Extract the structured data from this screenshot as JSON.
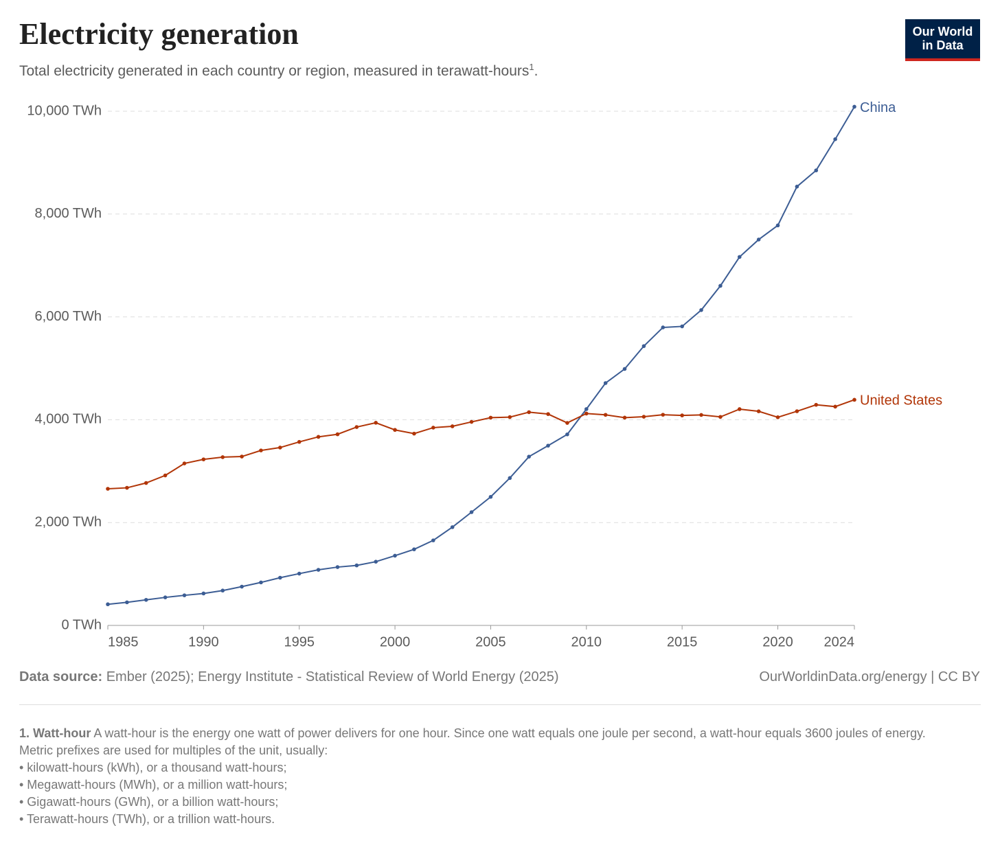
{
  "chart_data": {
    "type": "line",
    "title": "Electricity generation",
    "subtitle": "Total electricity generated in each country or region, measured in terawatt-hours",
    "subtitle_note": "1",
    "subtitle_end": ".",
    "x": [
      1985,
      1986,
      1987,
      1988,
      1989,
      1990,
      1991,
      1992,
      1993,
      1994,
      1995,
      1996,
      1997,
      1998,
      1999,
      2000,
      2001,
      2002,
      2003,
      2004,
      2005,
      2006,
      2007,
      2008,
      2009,
      2010,
      2011,
      2012,
      2013,
      2014,
      2015,
      2016,
      2017,
      2018,
      2019,
      2020,
      2021,
      2022,
      2023,
      2024
    ],
    "xlim": [
      1985,
      2024
    ],
    "xticks": [
      1985,
      1990,
      1995,
      2000,
      2005,
      2010,
      2015,
      2020,
      2024
    ],
    "ylim": [
      0,
      10000
    ],
    "yticks": [
      {
        "value": 0,
        "label": "0 TWh"
      },
      {
        "value": 2000,
        "label": "2,000 TWh"
      },
      {
        "value": 4000,
        "label": "4,000 TWh"
      },
      {
        "value": 6000,
        "label": "6,000 TWh"
      },
      {
        "value": 8000,
        "label": "8,000 TWh"
      },
      {
        "value": 10000,
        "label": "10,000 TWh"
      }
    ],
    "grid": true,
    "series": [
      {
        "name": "China",
        "color": "#3c5d94",
        "values": [
          411,
          449,
          497,
          545,
          585,
          621,
          678,
          754,
          836,
          928,
          1007,
          1081,
          1134,
          1167,
          1239,
          1356,
          1480,
          1654,
          1911,
          2203,
          2500,
          2866,
          3282,
          3496,
          3715,
          4207,
          4713,
          4988,
          5432,
          5795,
          5815,
          6133,
          6604,
          7166,
          7504,
          7779,
          8534,
          8849,
          9456,
          10087
        ]
      },
      {
        "name": "United States",
        "color": "#b13507",
        "values": [
          2657,
          2676,
          2770,
          2917,
          3150,
          3229,
          3272,
          3284,
          3403,
          3459,
          3569,
          3667,
          3717,
          3858,
          3941,
          3802,
          3730,
          3846,
          3872,
          3958,
          4040,
          4051,
          4147,
          4110,
          3938,
          4120,
          4095,
          4041,
          4058,
          4097,
          4084,
          4093,
          4055,
          4206,
          4164,
          4048,
          4165,
          4290,
          4255,
          4388
        ]
      }
    ]
  },
  "logo": [
    "Our World",
    "in Data"
  ],
  "source": {
    "label": "Data source:",
    "text": "Ember (2025); Energy Institute - Statistical Review of World Energy (2025)"
  },
  "credit": "OurWorldinData.org/energy | CC BY",
  "footnote": {
    "term": "1. Watt-hour",
    "definition": "A watt-hour is the energy one watt of power delivers for one hour. Since one watt equals one joule per second, a watt-hour equals 3600 joules of energy.",
    "lines": [
      "Metric prefixes are used for multiples of the unit, usually:",
      "• kilowatt-hours (kWh), or a thousand watt-hours;",
      "• Megawatt-hours (MWh), or a million watt-hours;",
      "• Gigawatt-hours (GWh), or a billion watt-hours;",
      "• Terawatt-hours (TWh), or a trillion watt-hours."
    ]
  }
}
